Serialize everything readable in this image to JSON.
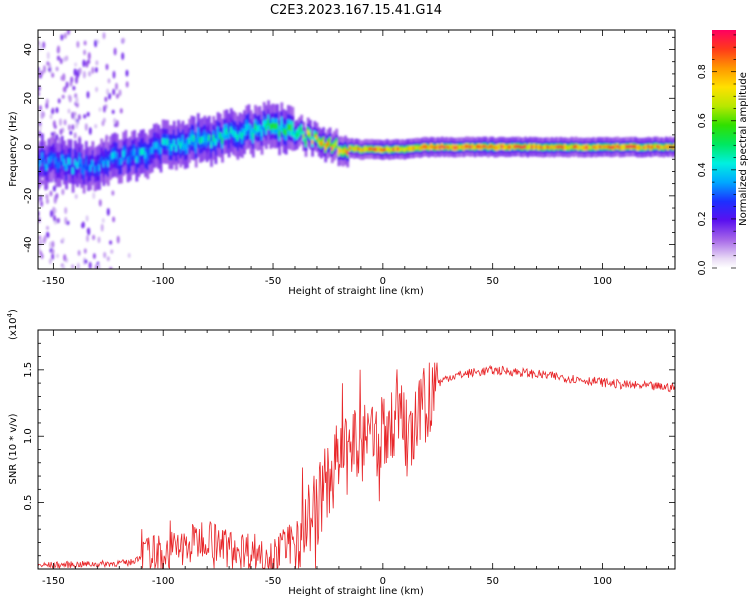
{
  "title": "C2E3.2023.167.15.41.G14",
  "chart_data": [
    {
      "type": "heatmap",
      "xlabel": "Height of straight line (km)",
      "ylabel": "Frequency (Hz)",
      "xlim": [
        -157,
        133
      ],
      "ylim": [
        -50,
        48
      ],
      "xticks": [
        -150,
        -100,
        -50,
        0,
        50,
        100
      ],
      "yticks": [
        -40,
        -20,
        0,
        20,
        40
      ],
      "colorbar": {
        "label": "Normalized spectral amplitude",
        "range": [
          0,
          0.97
        ],
        "ticks": [
          0.0,
          0.2,
          0.4,
          0.6,
          0.8
        ],
        "tick_labels": [
          "0.0",
          "0.2",
          "0.4",
          "0.6",
          "0.8"
        ],
        "colormap": "rainbow"
      },
      "ridge": {
        "x": [
          -150,
          -140,
          -130,
          -120,
          -110,
          -100,
          -90,
          -80,
          -70,
          -60,
          -50,
          -40,
          -30,
          -20,
          -10,
          0,
          10,
          20,
          50,
          100,
          133
        ],
        "freq": [
          -6,
          -8,
          -7,
          -5,
          -3,
          0,
          2,
          3,
          5,
          7,
          9,
          6,
          3,
          0,
          -1,
          -1,
          -1,
          0,
          0,
          0,
          0
        ],
        "amplitude": [
          0.35,
          0.38,
          0.35,
          0.38,
          0.4,
          0.4,
          0.42,
          0.45,
          0.45,
          0.45,
          0.5,
          0.55,
          0.75,
          0.8,
          0.82,
          0.85,
          0.88,
          0.9,
          0.88,
          0.85,
          0.88
        ]
      }
    },
    {
      "type": "line",
      "xlabel": "Height of straight line (km)",
      "ylabel": "SNR (10 * v/v)",
      "y_multiplier": "(x10",
      "y_multiplier_exp": "4",
      "y_multiplier_close": ")",
      "xlim": [
        -157,
        133
      ],
      "ylim": [
        0,
        1.8
      ],
      "xticks": [
        -150,
        -100,
        -50,
        0,
        50,
        100
      ],
      "yticks": [
        0.5,
        1.0,
        1.5
      ],
      "ytick_labels": [
        "0.5",
        "1.0",
        "1.5"
      ],
      "series": [
        {
          "color": "#e8272a",
          "x": [
            -157,
            -130,
            -115,
            -110,
            -100,
            -90,
            -85,
            -80,
            -75,
            -70,
            -60,
            -50,
            -45,
            -40,
            -35,
            -30,
            -25,
            -20,
            -15,
            -10,
            -5,
            0,
            5,
            8,
            10,
            12,
            15,
            20,
            25,
            30,
            40,
            50,
            60,
            70,
            80,
            90,
            100,
            110,
            120,
            133
          ],
          "y": [
            0.03,
            0.04,
            0.05,
            0.1,
            0.14,
            0.18,
            0.22,
            0.28,
            0.2,
            0.17,
            0.15,
            0.12,
            0.15,
            0.25,
            0.38,
            0.5,
            0.7,
            0.85,
            0.9,
            0.95,
            1.0,
            1.05,
            1.15,
            1.35,
            1.05,
            0.95,
            1.1,
            1.3,
            1.4,
            1.45,
            1.48,
            1.5,
            1.49,
            1.47,
            1.45,
            1.43,
            1.41,
            1.39,
            1.38,
            1.37
          ]
        }
      ]
    }
  ]
}
